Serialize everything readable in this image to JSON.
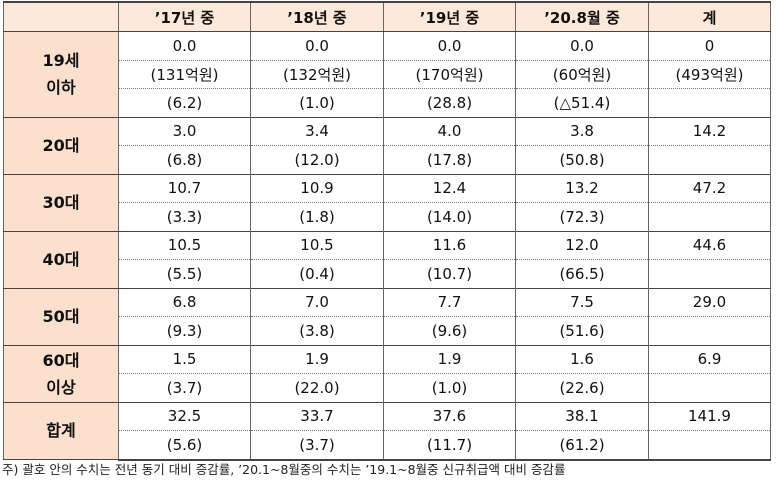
{
  "table": {
    "columns": [
      "’17년 중",
      "’18년 중",
      "’19년 중",
      "’20.8월 중",
      "계"
    ],
    "groups": [
      {
        "label": [
          "19세",
          "이하"
        ],
        "rows": [
          [
            "0.0",
            "0.0",
            "0.0",
            "0.0",
            "0"
          ],
          [
            "(131억원)",
            "(132억원)",
            "(170억원)",
            "(60억원)",
            "(493억원)"
          ],
          [
            "(6.2)",
            "(1.0)",
            "(28.8)",
            "(△51.4)"
          ]
        ]
      },
      {
        "label": [
          "20대"
        ],
        "rows": [
          [
            "3.0",
            "3.4",
            "4.0",
            "3.8",
            "14.2"
          ],
          [
            "(6.8)",
            "(12.0)",
            "(17.8)",
            "(50.8)"
          ]
        ]
      },
      {
        "label": [
          "30대"
        ],
        "rows": [
          [
            "10.7",
            "10.9",
            "12.4",
            "13.2",
            "47.2"
          ],
          [
            "(3.3)",
            "(1.8)",
            "(14.0)",
            "(72.3)"
          ]
        ]
      },
      {
        "label": [
          "40대"
        ],
        "rows": [
          [
            "10.5",
            "10.5",
            "11.6",
            "12.0",
            "44.6"
          ],
          [
            "(5.5)",
            "(0.4)",
            "(10.7)",
            "(66.5)"
          ]
        ]
      },
      {
        "label": [
          "50대"
        ],
        "rows": [
          [
            "6.8",
            "7.0",
            "7.7",
            "7.5",
            "29.0"
          ],
          [
            "(9.3)",
            "(3.8)",
            "(9.6)",
            "(51.6)"
          ]
        ]
      },
      {
        "label": [
          "60대",
          "이상"
        ],
        "rows": [
          [
            "1.5",
            "1.9",
            "1.9",
            "1.6",
            "6.9"
          ],
          [
            "(3.7)",
            "(22.0)",
            "(1.0)",
            "(22.6)"
          ]
        ]
      },
      {
        "label": [
          "합계"
        ],
        "rows": [
          [
            "32.5",
            "33.7",
            "37.6",
            "38.1",
            "141.9"
          ],
          [
            "(5.6)",
            "(3.7)",
            "(11.7)",
            "(61.2)"
          ]
        ]
      }
    ]
  },
  "footnote": "주) 괄호 안의 수치는 전년 동기 대비 증감률, ’20.1~8월중의 수치는 ’19.1~8월중 신규취급액 대비 증감률"
}
